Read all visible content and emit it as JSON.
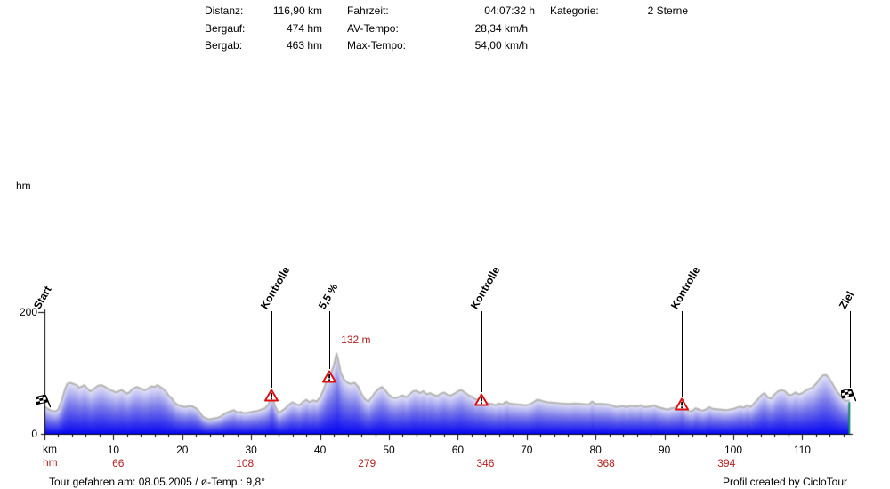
{
  "header": {
    "col1": [
      {
        "label": "Distanz:",
        "value": "116,90 km"
      },
      {
        "label": "Bergauf:",
        "value": "474 hm"
      },
      {
        "label": "Bergab:",
        "value": "463 hm"
      }
    ],
    "col2": [
      {
        "label": "Fahrzeit:",
        "value": "04:07:32 h"
      },
      {
        "label": "AV-Tempo:",
        "value": "28,34 km/h"
      },
      {
        "label": "Max-Tempo:",
        "value": "54,00 km/h"
      }
    ],
    "col3": [
      {
        "label": "Kategorie:",
        "value": "2 Sterne"
      }
    ]
  },
  "footer": {
    "left": "Tour gefahren am: 08.05.2005 / ø-Temp.: 9,8°",
    "right": "Profil created by CicloTour"
  },
  "chart_data": {
    "type": "area",
    "title": "Elevation profile",
    "xlabel": "km",
    "ylabel": "hm",
    "xlim": [
      0,
      116.9
    ],
    "ylim": [
      0,
      200
    ],
    "x_major_ticks": [
      10,
      20,
      30,
      40,
      50,
      60,
      70,
      80,
      90,
      100,
      110
    ],
    "x_minor_tick_step": 2,
    "y_ticks": [
      0,
      200
    ],
    "grid": false,
    "markers": [
      {
        "label": "Start",
        "type": "flag",
        "km": 0,
        "line": false
      },
      {
        "label": "Kontrolle",
        "type": "warning",
        "km": 33,
        "line": true
      },
      {
        "label": "5,5 %",
        "type": "warning",
        "km": 41.3,
        "line": true
      },
      {
        "label": "Kontrolle",
        "type": "warning",
        "km": 63.4,
        "line": true
      },
      {
        "label": "Kontrolle",
        "type": "warning",
        "km": 92.5,
        "line": true
      },
      {
        "label": "Ziel",
        "type": "flag",
        "km": 116.9,
        "line": true
      }
    ],
    "peak_annotation": {
      "text": "132 m",
      "km": 42.4,
      "hm": 132
    },
    "hm_row": {
      "label": "hm",
      "values": [
        {
          "km": 10.7,
          "text": "66"
        },
        {
          "km": 29.1,
          "text": "108"
        },
        {
          "km": 46.8,
          "text": "279"
        },
        {
          "km": 64.0,
          "text": "346"
        },
        {
          "km": 81.5,
          "text": "368"
        },
        {
          "km": 99.0,
          "text": "394"
        }
      ]
    },
    "colors": {
      "fill_top": "#e6e6f8",
      "fill_mid": "#7878ea",
      "fill_bottom": "#0606f2",
      "outline": "#b6b6b6",
      "axis": "#000000",
      "red": "#b22222",
      "marker_red": "#dd1111",
      "end_line": "#128a62"
    },
    "profile": [
      [
        0,
        45
      ],
      [
        0.5,
        41
      ],
      [
        1,
        38
      ],
      [
        1.6,
        37
      ],
      [
        2,
        40
      ],
      [
        2.5,
        55
      ],
      [
        3,
        74
      ],
      [
        3.3,
        82
      ],
      [
        3.7,
        84
      ],
      [
        4.2,
        82
      ],
      [
        4.7,
        80
      ],
      [
        5,
        76
      ],
      [
        5.5,
        78
      ],
      [
        5.8,
        80
      ],
      [
        6.2,
        75
      ],
      [
        6.6,
        70
      ],
      [
        7,
        72
      ],
      [
        7.4,
        76
      ],
      [
        7.8,
        79
      ],
      [
        8.3,
        80
      ],
      [
        8.8,
        77
      ],
      [
        9.5,
        72
      ],
      [
        10,
        70
      ],
      [
        10.3,
        68
      ],
      [
        10.8,
        70
      ],
      [
        11.2,
        72
      ],
      [
        11.6,
        69
      ],
      [
        12,
        66
      ],
      [
        12.4,
        69
      ],
      [
        12.8,
        74
      ],
      [
        13.4,
        77
      ],
      [
        13.8,
        75
      ],
      [
        14.5,
        72
      ],
      [
        15,
        74
      ],
      [
        15.5,
        78
      ],
      [
        16,
        77
      ],
      [
        16.4,
        80
      ],
      [
        16.8,
        77
      ],
      [
        17.2,
        74
      ],
      [
        17.6,
        70
      ],
      [
        18,
        63
      ],
      [
        18.5,
        58
      ],
      [
        19,
        50
      ],
      [
        19.5,
        47
      ],
      [
        20,
        45
      ],
      [
        20.5,
        44
      ],
      [
        21,
        46
      ],
      [
        21.5,
        45
      ],
      [
        22,
        42
      ],
      [
        22.5,
        36
      ],
      [
        23,
        28
      ],
      [
        23.5,
        25
      ],
      [
        24,
        24
      ],
      [
        24.5,
        25
      ],
      [
        25,
        26
      ],
      [
        25.5,
        28
      ],
      [
        26,
        32
      ],
      [
        26.5,
        35
      ],
      [
        27,
        37
      ],
      [
        27.5,
        39
      ],
      [
        28,
        35
      ],
      [
        28.5,
        36
      ],
      [
        29,
        34
      ],
      [
        29.5,
        35
      ],
      [
        30,
        36
      ],
      [
        30.5,
        37
      ],
      [
        31,
        38
      ],
      [
        31.5,
        40
      ],
      [
        32,
        42
      ],
      [
        32.5,
        48
      ],
      [
        33,
        63
      ],
      [
        33.5,
        45
      ],
      [
        34,
        34
      ],
      [
        34.5,
        38
      ],
      [
        35,
        42
      ],
      [
        35.5,
        48
      ],
      [
        36,
        52
      ],
      [
        36.5,
        49
      ],
      [
        37,
        47
      ],
      [
        37.5,
        52
      ],
      [
        38,
        56
      ],
      [
        38.5,
        52
      ],
      [
        39,
        55
      ],
      [
        39.5,
        53
      ],
      [
        40,
        60
      ],
      [
        40.5,
        72
      ],
      [
        41,
        88
      ],
      [
        41.5,
        97
      ],
      [
        42,
        112
      ],
      [
        42.4,
        132
      ],
      [
        42.7,
        118
      ],
      [
        43,
        100
      ],
      [
        43.5,
        89
      ],
      [
        44,
        84
      ],
      [
        44.5,
        82
      ],
      [
        45,
        84
      ],
      [
        45.5,
        78
      ],
      [
        46,
        66
      ],
      [
        46.5,
        57
      ],
      [
        47,
        53
      ],
      [
        47.5,
        60
      ],
      [
        48,
        68
      ],
      [
        48.5,
        74
      ],
      [
        49,
        77
      ],
      [
        49.5,
        71
      ],
      [
        50,
        64
      ],
      [
        50.5,
        60
      ],
      [
        51,
        59
      ],
      [
        51.5,
        61
      ],
      [
        52,
        63
      ],
      [
        52.5,
        60
      ],
      [
        53,
        65
      ],
      [
        53.5,
        70
      ],
      [
        54,
        71
      ],
      [
        54.5,
        67
      ],
      [
        55,
        70
      ],
      [
        55.5,
        65
      ],
      [
        56,
        67
      ],
      [
        56.5,
        64
      ],
      [
        57,
        62
      ],
      [
        57.5,
        66
      ],
      [
        58,
        68
      ],
      [
        58.5,
        64
      ],
      [
        59,
        63
      ],
      [
        59.5,
        66
      ],
      [
        60,
        70
      ],
      [
        60.5,
        72
      ],
      [
        61,
        68
      ],
      [
        61.5,
        64
      ],
      [
        62,
        61
      ],
      [
        62.5,
        57
      ],
      [
        63,
        56
      ],
      [
        63.5,
        56
      ],
      [
        64,
        52
      ],
      [
        64.5,
        50
      ],
      [
        65,
        49
      ],
      [
        65.5,
        47
      ],
      [
        66,
        50
      ],
      [
        66.5,
        48
      ],
      [
        67,
        53
      ],
      [
        67.5,
        50
      ],
      [
        68,
        49
      ],
      [
        69,
        48
      ],
      [
        70,
        47
      ],
      [
        70.5,
        49
      ],
      [
        71,
        52
      ],
      [
        71.5,
        56
      ],
      [
        72,
        55
      ],
      [
        72.5,
        53
      ],
      [
        73,
        52
      ],
      [
        74,
        51
      ],
      [
        75,
        50
      ],
      [
        76,
        49
      ],
      [
        77,
        50
      ],
      [
        78,
        49
      ],
      [
        79,
        48
      ],
      [
        79.5,
        53
      ],
      [
        80,
        49
      ],
      [
        81,
        49
      ],
      [
        82,
        48
      ],
      [
        83,
        44
      ],
      [
        84,
        46
      ],
      [
        84.5,
        44
      ],
      [
        85,
        46
      ],
      [
        86,
        45
      ],
      [
        86.5,
        47
      ],
      [
        87,
        44
      ],
      [
        88,
        45
      ],
      [
        88.5,
        47
      ],
      [
        89,
        44
      ],
      [
        90,
        41
      ],
      [
        90.5,
        40
      ],
      [
        91,
        42
      ],
      [
        92,
        44
      ],
      [
        92.5,
        48
      ],
      [
        93,
        41
      ],
      [
        93.5,
        38
      ],
      [
        94,
        37
      ],
      [
        94.5,
        42
      ],
      [
        95,
        40
      ],
      [
        95.5,
        38
      ],
      [
        96,
        40
      ],
      [
        96.5,
        44
      ],
      [
        97,
        41
      ],
      [
        98,
        40
      ],
      [
        99,
        39
      ],
      [
        100,
        41
      ],
      [
        100.5,
        43
      ],
      [
        101,
        45
      ],
      [
        101.5,
        43
      ],
      [
        102,
        47
      ],
      [
        102.5,
        44
      ],
      [
        103,
        50
      ],
      [
        103.5,
        56
      ],
      [
        104,
        63
      ],
      [
        104.5,
        67
      ],
      [
        105,
        60
      ],
      [
        105.5,
        58
      ],
      [
        106,
        65
      ],
      [
        106.5,
        70
      ],
      [
        107,
        72
      ],
      [
        107.5,
        70
      ],
      [
        108,
        64
      ],
      [
        108.5,
        64
      ],
      [
        109,
        68
      ],
      [
        109.5,
        65
      ],
      [
        110,
        67
      ],
      [
        110.5,
        71
      ],
      [
        111,
        74
      ],
      [
        111.5,
        76
      ],
      [
        112,
        82
      ],
      [
        112.5,
        90
      ],
      [
        113,
        96
      ],
      [
        113.4,
        97
      ],
      [
        113.8,
        93
      ],
      [
        114.3,
        84
      ],
      [
        114.8,
        74
      ],
      [
        115.3,
        66
      ],
      [
        115.8,
        59
      ],
      [
        116.3,
        54
      ],
      [
        116.9,
        55
      ]
    ]
  }
}
